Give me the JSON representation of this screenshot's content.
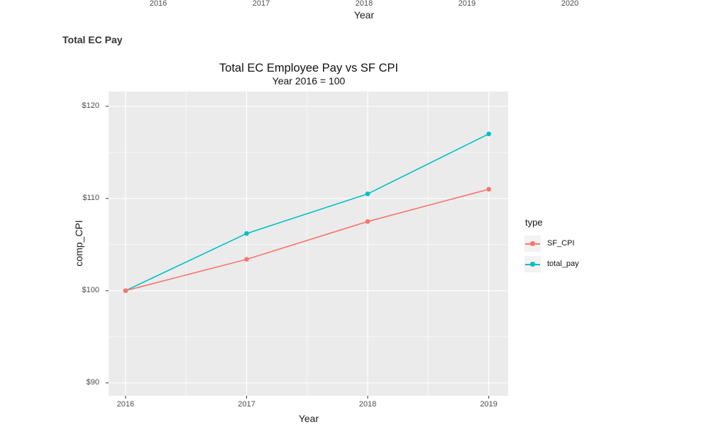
{
  "page": {
    "section_heading": "Total EC Pay",
    "background_color": "#ffffff"
  },
  "top_chart": {
    "axis_label": "Year",
    "tick_labels": [
      "2016",
      "2017",
      "2018",
      "2019",
      "2020"
    ]
  },
  "chart_data": {
    "type": "line",
    "title": "Total EC Employee Pay vs SF CPI",
    "subtitle": "Year 2016 = 100",
    "xlabel": "Year",
    "ylabel": "comp_CPI",
    "x": [
      2016,
      2017,
      2018,
      2019
    ],
    "series": [
      {
        "name": "SF_CPI",
        "color": "#F8766D",
        "values": [
          100,
          103.4,
          107.5,
          111.0
        ]
      },
      {
        "name": "total_pay",
        "color": "#00BFC4",
        "values": [
          100,
          106.2,
          110.5,
          117.0
        ]
      }
    ],
    "xlim": [
      2015.86,
      2019.16
    ],
    "ylim": [
      88.6,
      121.6
    ],
    "x_ticks": [
      2016,
      2017,
      2018,
      2019
    ],
    "x_tick_labels": [
      "2016",
      "2017",
      "2018",
      "2019"
    ],
    "y_ticks": [
      90,
      100,
      110,
      120
    ],
    "y_tick_labels": [
      "$90",
      "$100",
      "$110",
      "$120"
    ],
    "x_minor_ticks": [
      2016.5,
      2017.5,
      2018.5
    ],
    "y_minor_ticks": [
      95,
      105,
      115
    ],
    "grid": true,
    "panel_background": "#EBEBEB",
    "gridline_color": "#FFFFFF",
    "tick_mark_color": "#333333",
    "axis_text_color": "#4d4d4d",
    "legend": {
      "title": "type",
      "position": "right",
      "key_background": "#F2F2F2",
      "items": [
        "SF_CPI",
        "total_pay"
      ]
    }
  }
}
